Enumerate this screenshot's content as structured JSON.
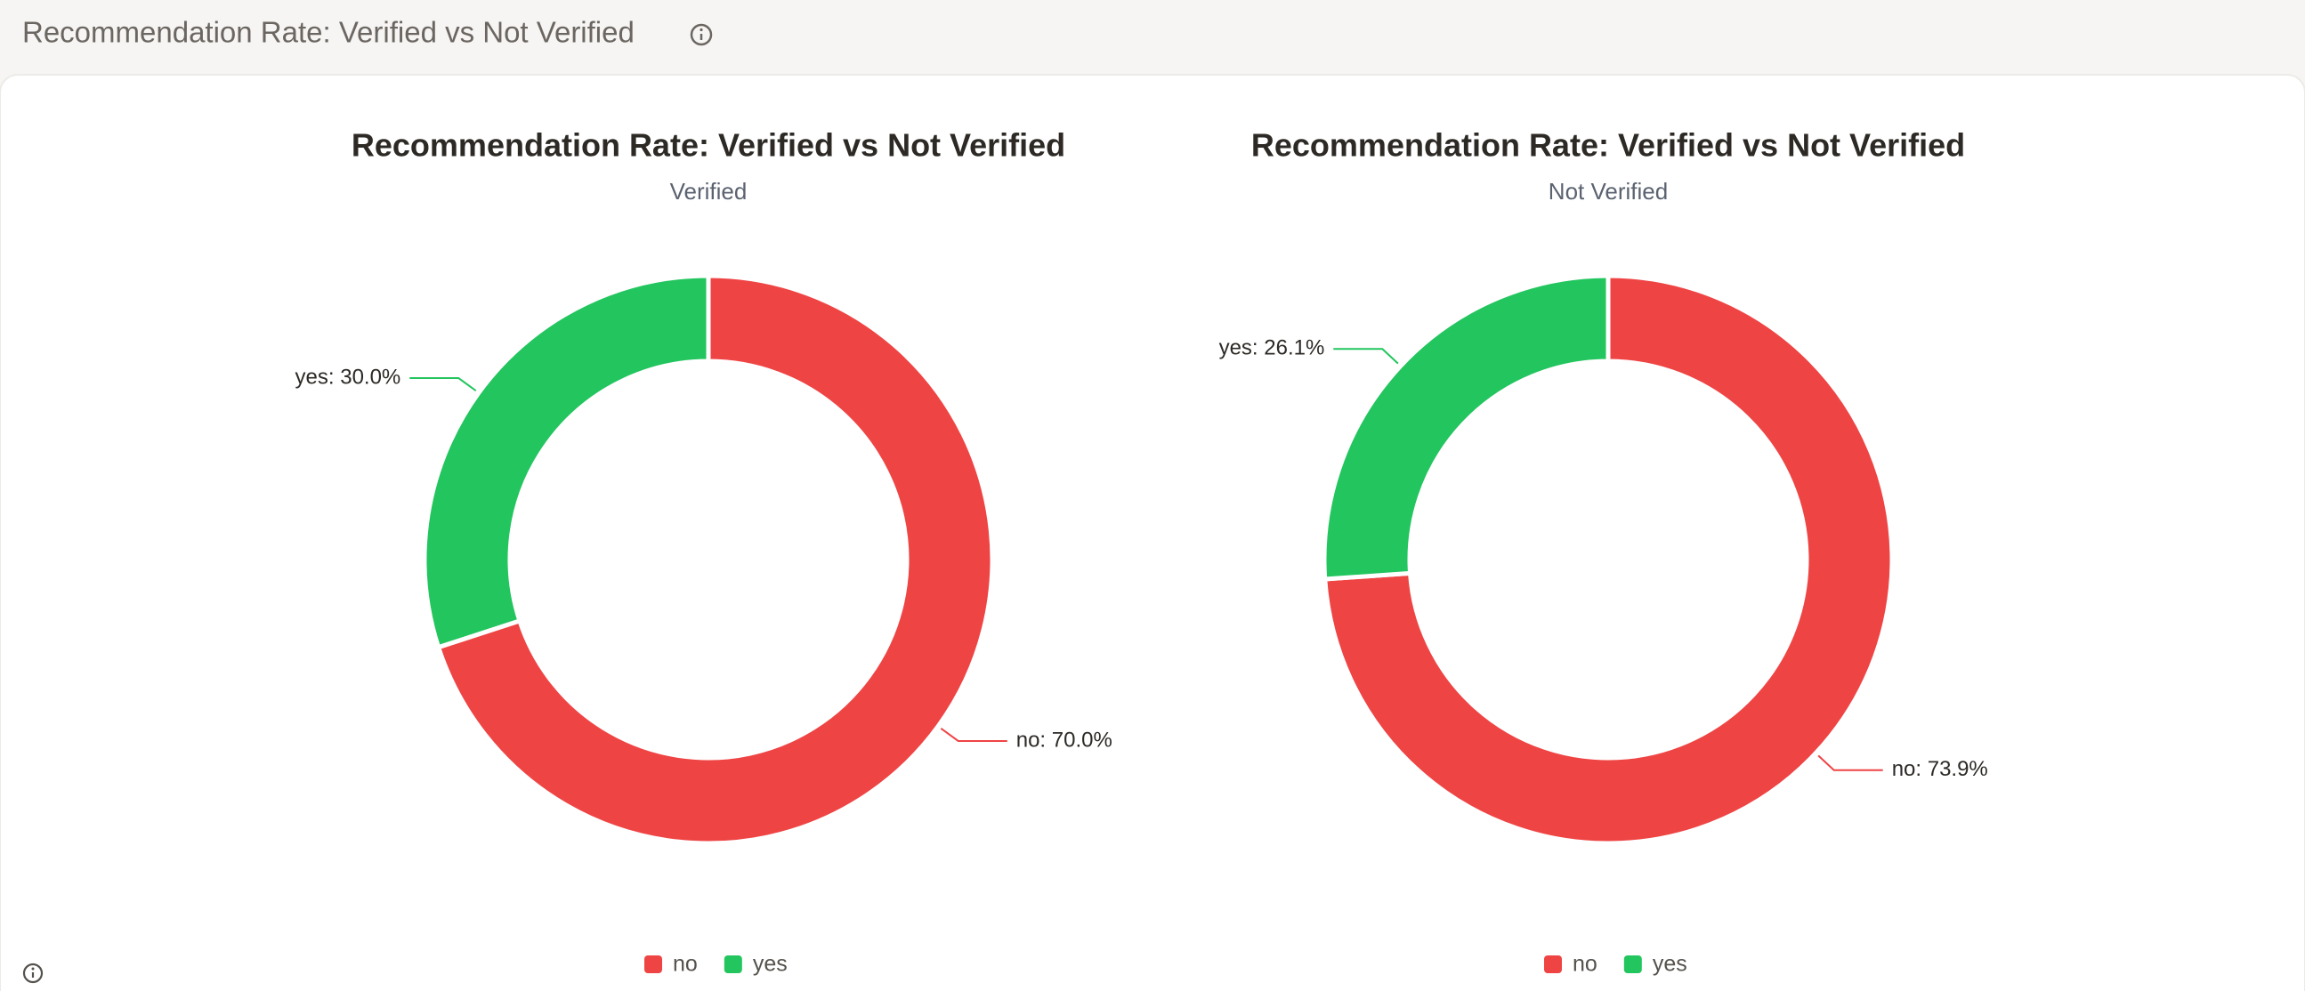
{
  "header": {
    "title": "Recommendation Rate: Verified vs Not Verified"
  },
  "chart_data": [
    {
      "type": "donut",
      "title": "Recommendation Rate: Verified vs Not Verified",
      "subtitle": "Verified",
      "categories": [
        "no",
        "yes"
      ],
      "values": [
        70.0,
        30.0
      ],
      "value_labels": [
        "no: 70.0%",
        "yes: 30.0%"
      ],
      "colors": [
        "#ef4444",
        "#22c55e"
      ]
    },
    {
      "type": "donut",
      "title": "Recommendation Rate: Verified vs Not Verified",
      "subtitle": "Not Verified",
      "categories": [
        "no",
        "yes"
      ],
      "values": [
        73.9,
        26.1
      ],
      "value_labels": [
        "no: 73.9%",
        "yes: 26.1%"
      ],
      "colors": [
        "#ef4444",
        "#22c55e"
      ]
    }
  ]
}
